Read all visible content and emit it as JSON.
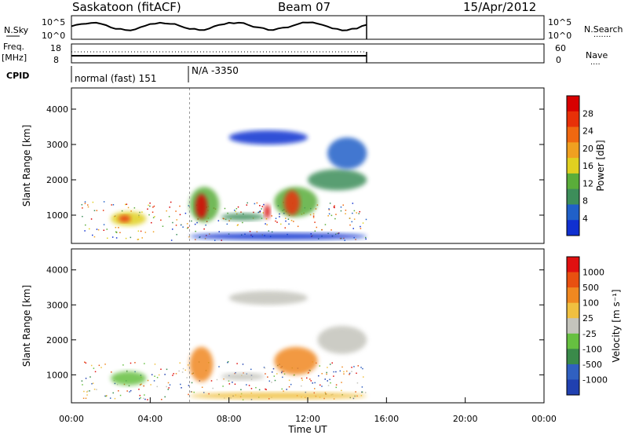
{
  "header": {
    "station": "Saskatoon (fitACF)",
    "beam": "Beam 07",
    "date": "15/Apr/2012"
  },
  "nsky_panel": {
    "label": "N.Sky",
    "left_ticks": [
      "10^5",
      "10^0"
    ],
    "right_ticks": [
      "10^5",
      "10^0"
    ],
    "right_label": "N.Search",
    "right_dots": "·······"
  },
  "freq_panel": {
    "label_line1": "Freq.",
    "label_line2": "[MHz]",
    "left_ticks": [
      "18",
      "8"
    ],
    "right_ticks": [
      "60",
      "0"
    ],
    "right_label": "Nave",
    "right_dots": "····"
  },
  "cpid_panel": {
    "label": "CPID",
    "segments": [
      "normal (fast) 151",
      "N/A -3350"
    ]
  },
  "colors": {
    "power_scale": [
      "#1030d0",
      "#2060c8",
      "#3d8e5a",
      "#5aad3a",
      "#e0d020",
      "#f0a020",
      "#f06810",
      "#e83008",
      "#d80000"
    ],
    "velocity_scale": [
      "#2040b0",
      "#3060c0",
      "#3a8a4a",
      "#66c040",
      "#c4c4bc",
      "#f0c040",
      "#f08820",
      "#e85010",
      "#e01010"
    ]
  },
  "chart_data": [
    {
      "type": "heatmap",
      "name": "power",
      "ylabel": "Slant Range [km]",
      "ylim": [
        200,
        4600
      ],
      "xlim": [
        0,
        24
      ],
      "yticks": [
        "4000",
        "3000",
        "2000",
        "1000"
      ],
      "colorbar_label": "Power [dB]",
      "colorbar_ticks": [
        "28",
        "24",
        "20",
        "16",
        "12",
        "8",
        "4"
      ],
      "colorbar_range": [
        0,
        32
      ],
      "regions": [
        {
          "x": [
            2.0,
            3.8
          ],
          "y": [
            700,
            1100
          ],
          "level": 4
        },
        {
          "x": [
            2.4,
            3.0
          ],
          "y": [
            800,
            1000
          ],
          "level": 7
        },
        {
          "x": [
            6.0,
            7.5
          ],
          "y": [
            800,
            1800
          ],
          "level": 3
        },
        {
          "x": [
            6.3,
            6.9
          ],
          "y": [
            900,
            1600
          ],
          "level": 8
        },
        {
          "x": [
            7.6,
            9.8
          ],
          "y": [
            850,
            1050
          ],
          "level": 2
        },
        {
          "x": [
            9.8,
            10.1
          ],
          "y": [
            900,
            1300
          ],
          "level": 8
        },
        {
          "x": [
            10.3,
            12.5
          ],
          "y": [
            950,
            1800
          ],
          "level": 3
        },
        {
          "x": [
            10.8,
            11.6
          ],
          "y": [
            1000,
            1700
          ],
          "level": 7
        },
        {
          "x": [
            12.0,
            15.0
          ],
          "y": [
            1700,
            2300
          ],
          "level": 2
        },
        {
          "x": [
            13.0,
            15.0
          ],
          "y": [
            2300,
            3200
          ],
          "level": 1
        },
        {
          "x": [
            8.0,
            12.0
          ],
          "y": [
            3000,
            3400
          ],
          "level": 0
        },
        {
          "x": [
            6.0,
            15.0
          ],
          "y": [
            300,
            500
          ],
          "level": 0
        }
      ]
    },
    {
      "type": "heatmap",
      "name": "velocity",
      "ylabel": "Slant Range [km]",
      "xlabel": "Time UT",
      "ylim": [
        200,
        4600
      ],
      "xlim": [
        0,
        24
      ],
      "yticks": [
        "4000",
        "3000",
        "2000",
        "1000"
      ],
      "xticks": [
        "00:00",
        "04:00",
        "08:00",
        "12:00",
        "16:00",
        "20:00",
        "00:00"
      ],
      "colorbar_label": "Velocity [m s⁻¹]",
      "colorbar_ticks": [
        "1000",
        "500",
        "100",
        "25",
        "-25",
        "-100",
        "-500",
        "-1000"
      ],
      "regions": [
        {
          "x": [
            2.0,
            3.8
          ],
          "y": [
            700,
            1100
          ],
          "level": 3
        },
        {
          "x": [
            6.0,
            7.2
          ],
          "y": [
            800,
            1800
          ],
          "level": 6
        },
        {
          "x": [
            7.6,
            9.8
          ],
          "y": [
            850,
            1050
          ],
          "level": 4
        },
        {
          "x": [
            10.3,
            12.5
          ],
          "y": [
            1000,
            1800
          ],
          "level": 6
        },
        {
          "x": [
            12.5,
            15.0
          ],
          "y": [
            1600,
            2400
          ],
          "level": 4
        },
        {
          "x": [
            8.0,
            12.0
          ],
          "y": [
            3000,
            3400
          ],
          "level": 4
        },
        {
          "x": [
            6.0,
            15.0
          ],
          "y": [
            300,
            500
          ],
          "level": 5
        }
      ]
    }
  ]
}
